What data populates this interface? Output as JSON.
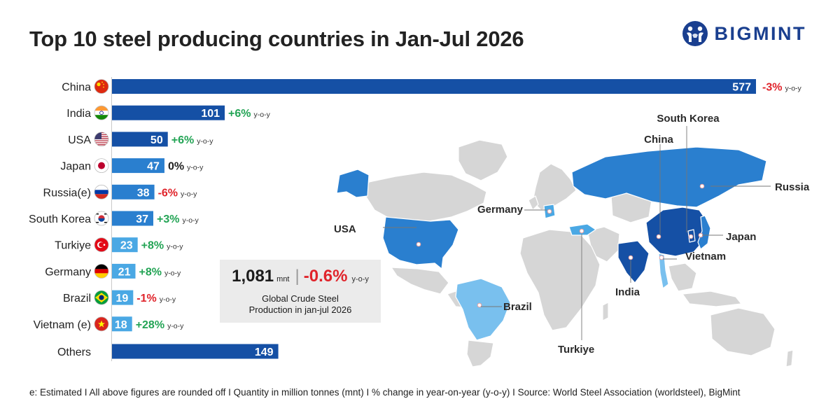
{
  "header": {
    "title": "Top 10 steel producing countries in Jan-Jul 2026",
    "brand": "BIGMINT"
  },
  "colors": {
    "dark_blue": "#1550a5",
    "mid_blue": "#2a7fcf",
    "light_blue": "#4aa8e4",
    "positive": "#23a455",
    "negative": "#e0242b",
    "neutral": "#222222",
    "map_land": "#d6d6d6"
  },
  "chart_data": {
    "type": "bar",
    "orientation": "horizontal",
    "categories": [
      "China",
      "India",
      "USA",
      "Japan",
      "Russia(e)",
      "South Korea",
      "Turkiye",
      "Germany",
      "Brazil",
      "Vietnam (e)",
      "Others"
    ],
    "values": [
      577,
      101,
      50,
      47,
      38,
      37,
      23,
      21,
      19,
      18,
      149
    ],
    "changes": [
      "-3%",
      "+6%",
      "+6%",
      "0%",
      "-6%",
      "+3%",
      "+8%",
      "+8%",
      "-1%",
      "+28%",
      null
    ],
    "change_suffix": "y-o-y",
    "flag_icons": [
      "china-flag-icon",
      "india-flag-icon",
      "usa-flag-icon",
      "japan-flag-icon",
      "russia-flag-icon",
      "south-korea-flag-icon",
      "turkiye-flag-icon",
      "germany-flag-icon",
      "brazil-flag-icon",
      "vietnam-flag-icon",
      null
    ],
    "xlim": [
      0,
      577
    ],
    "grid": false,
    "legend": "none"
  },
  "summary": {
    "total": "1,081",
    "unit": "mnt",
    "separator": "|",
    "change": "-0.6%",
    "yoy": "y-o-y",
    "caption_line1": "Global Crude Steel",
    "caption_line2": "Production in jan-jul 2026"
  },
  "map": {
    "labels": [
      "South Korea",
      "China",
      "Russia",
      "Germany",
      "USA",
      "Japan",
      "Vietnam",
      "India",
      "Brazil",
      "Turkiye"
    ]
  },
  "footnote": "e: Estimated  I  All above figures are rounded off   I  Quantity in million tonnes (mnt)  I  % change in year-on-year (y-o-y)  I  Source: World Steel Association (worldsteel), BigMint"
}
